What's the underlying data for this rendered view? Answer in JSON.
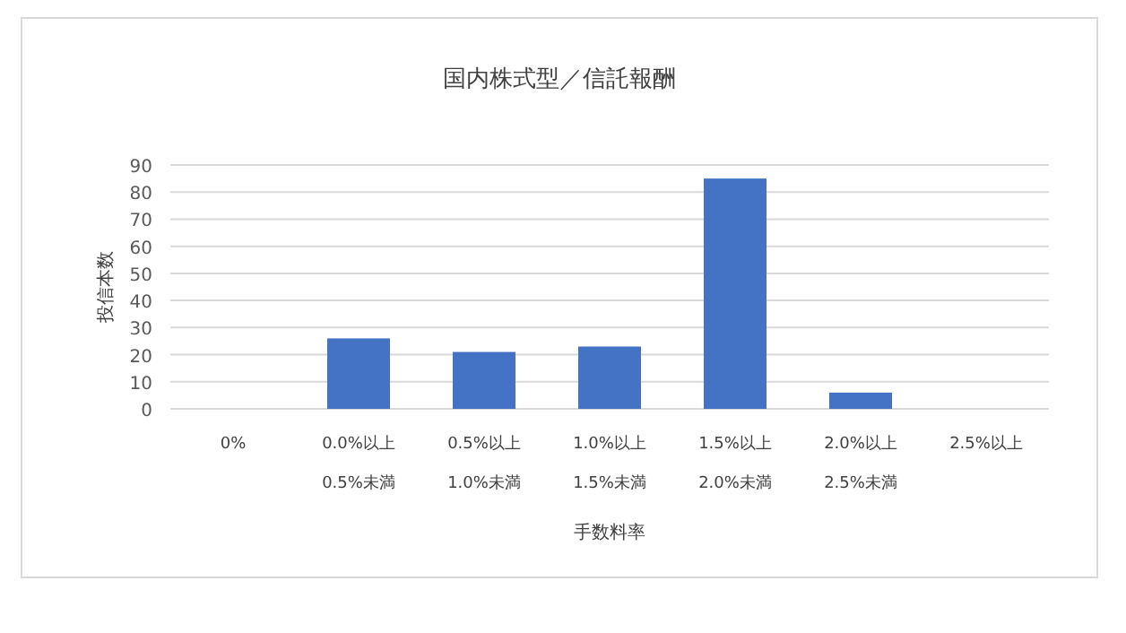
{
  "chart_data": {
    "type": "bar",
    "title": "国内株式型／信託報酬",
    "xlabel": "手数料率",
    "ylabel": "投信本数",
    "categories": [
      "0%",
      "0.0%以上\n0.5%未満",
      "0.5%以上\n1.0%未満",
      "1.0%以上\n1.5%未満",
      "1.5%以上\n2.0%未満",
      "2.0%以上\n2.5%未満",
      "2.5%以上"
    ],
    "values": [
      0,
      26,
      21,
      23,
      85,
      6,
      0
    ],
    "color": "#4472c4",
    "ylim": [
      0,
      90
    ],
    "yticks": [
      0,
      10,
      20,
      30,
      40,
      50,
      60,
      70,
      80,
      90
    ],
    "grid": "y"
  }
}
